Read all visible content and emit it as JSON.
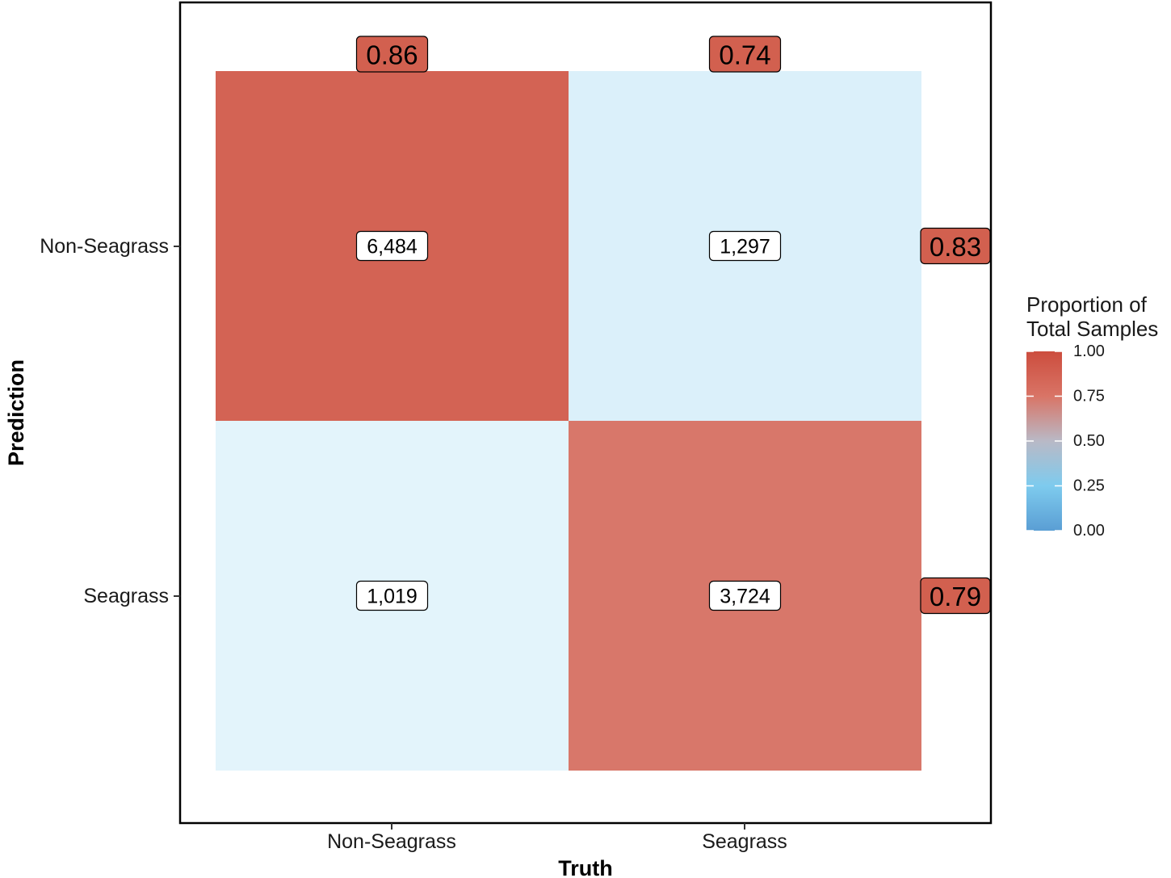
{
  "chart_data": {
    "type": "heatmap",
    "title": "",
    "xlabel": "Truth",
    "ylabel": "Prediction",
    "x_categories": [
      "Non-Seagrass",
      "Seagrass"
    ],
    "y_categories": [
      "Non-Seagrass",
      "Seagrass"
    ],
    "cells": [
      {
        "truth": "Non-Seagrass",
        "prediction": "Non-Seagrass",
        "count": 6484,
        "label": "6,484",
        "proportion": 0.86
      },
      {
        "truth": "Seagrass",
        "prediction": "Non-Seagrass",
        "count": 1297,
        "label": "1,297",
        "proportion": 0.26
      },
      {
        "truth": "Non-Seagrass",
        "prediction": "Seagrass",
        "count": 1019,
        "label": "1,019",
        "proportion": 0.14
      },
      {
        "truth": "Seagrass",
        "prediction": "Seagrass",
        "count": 3724,
        "label": "3,724",
        "proportion": 0.74
      }
    ],
    "column_metrics": [
      {
        "truth": "Non-Seagrass",
        "value": 0.86,
        "label": "0.86"
      },
      {
        "truth": "Seagrass",
        "value": 0.74,
        "label": "0.74"
      }
    ],
    "row_metrics": [
      {
        "prediction": "Non-Seagrass",
        "value": 0.83,
        "label": "0.83"
      },
      {
        "prediction": "Seagrass",
        "value": 0.79,
        "label": "0.79"
      }
    ],
    "legend": {
      "title_lines": [
        "Proportion of",
        "Total Samples"
      ],
      "ticks": [
        1.0,
        0.75,
        0.5,
        0.25,
        0.0
      ],
      "tick_labels": [
        "1.00",
        "0.75",
        "0.50",
        "0.25",
        "0.00"
      ],
      "range": [
        0,
        1
      ],
      "placement": "right"
    },
    "colors": {
      "scale": [
        {
          "stop": 0.0,
          "color": "#5a9ed4"
        },
        {
          "stop": 0.25,
          "color": "#7ecbee"
        },
        {
          "stop": 0.5,
          "color": "#b9b9c6"
        },
        {
          "stop": 0.75,
          "color": "#d97466"
        },
        {
          "stop": 1.0,
          "color": "#cc4d3e"
        }
      ],
      "metric_fill": "#d2604f",
      "panel_border": "#000000"
    }
  }
}
